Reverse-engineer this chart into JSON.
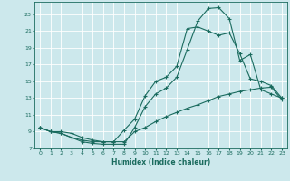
{
  "xlabel": "Humidex (Indice chaleur)",
  "bg_color": "#cce8ec",
  "grid_color": "#ffffff",
  "line_color": "#1a6b5e",
  "xlim": [
    -0.5,
    23.5
  ],
  "ylim": [
    7,
    24.5
  ],
  "xticks": [
    0,
    1,
    2,
    3,
    4,
    5,
    6,
    7,
    8,
    9,
    10,
    11,
    12,
    13,
    14,
    15,
    16,
    17,
    18,
    19,
    20,
    21,
    22,
    23
  ],
  "yticks": [
    7,
    9,
    11,
    13,
    15,
    17,
    19,
    21,
    23
  ],
  "line1_x": [
    0,
    1,
    2,
    3,
    4,
    5,
    6,
    7,
    8,
    9,
    10,
    11,
    12,
    13,
    14,
    15,
    16,
    17,
    18,
    19,
    20,
    21,
    22,
    23
  ],
  "line1_y": [
    9.5,
    9.0,
    8.8,
    8.3,
    7.8,
    7.6,
    7.5,
    7.5,
    7.5,
    9.5,
    12.0,
    13.5,
    14.2,
    15.5,
    18.8,
    22.2,
    23.7,
    23.8,
    22.5,
    17.5,
    18.2,
    14.0,
    13.5,
    13.0
  ],
  "line2_x": [
    0,
    1,
    2,
    3,
    4,
    5,
    6,
    7,
    8,
    9,
    10,
    11,
    12,
    13,
    14,
    15,
    16,
    17,
    18,
    19,
    20,
    21,
    22,
    23
  ],
  "line2_y": [
    9.5,
    9.0,
    9.0,
    8.8,
    8.3,
    8.0,
    7.8,
    7.8,
    9.2,
    10.5,
    13.3,
    15.0,
    15.5,
    16.8,
    21.3,
    21.5,
    21.0,
    20.5,
    20.8,
    18.3,
    15.3,
    15.0,
    14.5,
    13.0
  ],
  "line3_x": [
    0,
    1,
    2,
    3,
    4,
    5,
    6,
    7,
    8,
    9,
    10,
    11,
    12,
    13,
    14,
    15,
    16,
    17,
    18,
    19,
    20,
    21,
    22,
    23
  ],
  "line3_y": [
    9.5,
    9.0,
    8.8,
    8.3,
    8.0,
    7.8,
    7.8,
    7.8,
    7.8,
    9.0,
    9.5,
    10.2,
    10.8,
    11.3,
    11.8,
    12.2,
    12.7,
    13.2,
    13.5,
    13.8,
    14.0,
    14.2,
    14.3,
    12.8
  ]
}
